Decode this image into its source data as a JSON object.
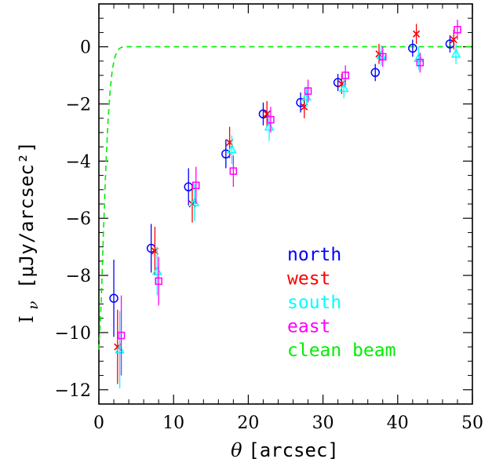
{
  "chart_data": {
    "type": "scatter",
    "title": "",
    "xlabel": {
      "symbol": "θ",
      "units": "[arcsec]"
    },
    "ylabel": {
      "symbol": "I",
      "subscript": "ν",
      "units": "[μJy/arcsec²]"
    },
    "xlim": [
      0,
      50
    ],
    "ylim": [
      -12.5,
      1.5
    ],
    "x_ticks": [
      0,
      10,
      20,
      30,
      40,
      50
    ],
    "y_ticks": [
      0,
      -2,
      -4,
      -6,
      -8,
      -10,
      -12
    ],
    "x_tick_labels": [
      "0",
      "10",
      "20",
      "30",
      "40",
      "50"
    ],
    "y_tick_labels": [
      "0",
      "−2",
      "−4",
      "−6",
      "−8",
      "−10",
      "−12"
    ],
    "grid": false,
    "legend_position": "lower-right inside plot",
    "series": [
      {
        "name": "north",
        "color": "#0000ff",
        "marker": "circle",
        "x": [
          2.0,
          7.0,
          12.0,
          17.0,
          22.0,
          27.0,
          32.0,
          37.0,
          42.0,
          47.0
        ],
        "y": [
          -8.8,
          -7.05,
          -4.9,
          -3.75,
          -2.35,
          -1.95,
          -1.25,
          -0.9,
          -0.05,
          0.1
        ],
        "err": [
          1.35,
          0.85,
          0.65,
          0.5,
          0.4,
          0.35,
          0.3,
          0.3,
          0.3,
          0.3
        ]
      },
      {
        "name": "west",
        "color": "#ff0000",
        "marker": "x",
        "x": [
          2.5,
          7.5,
          12.5,
          17.5,
          22.5,
          27.5,
          32.5,
          37.5,
          42.5,
          47.5
        ],
        "y": [
          -10.5,
          -7.15,
          -5.5,
          -3.35,
          -2.35,
          -2.1,
          -1.3,
          -0.25,
          0.45,
          0.25
        ],
        "err": [
          1.3,
          0.85,
          0.65,
          0.55,
          0.45,
          0.4,
          0.35,
          0.35,
          0.35,
          0.35
        ]
      },
      {
        "name": "south",
        "color": "#00ffff",
        "marker": "triangle",
        "x": [
          2.8,
          7.8,
          12.8,
          17.8,
          22.8,
          27.8,
          32.8,
          37.8,
          42.8,
          47.8
        ],
        "y": [
          -10.6,
          -7.85,
          -5.45,
          -3.6,
          -2.8,
          -1.75,
          -1.45,
          -0.3,
          -0.4,
          -0.25
        ],
        "err": [
          1.35,
          0.85,
          0.65,
          0.5,
          0.5,
          0.35,
          0.35,
          0.35,
          0.4,
          0.35
        ]
      },
      {
        "name": "east",
        "color": "#ff00ff",
        "marker": "square",
        "x": [
          3.0,
          8.0,
          13.0,
          18.0,
          23.0,
          28.0,
          33.0,
          38.0,
          43.0,
          48.0
        ],
        "y": [
          -10.1,
          -8.2,
          -4.85,
          -4.35,
          -2.55,
          -1.55,
          -1.0,
          -0.35,
          -0.55,
          0.6
        ],
        "err": [
          1.4,
          0.85,
          0.65,
          0.55,
          0.45,
          0.4,
          0.35,
          0.35,
          0.35,
          0.35
        ]
      },
      {
        "name": "clean beam",
        "color": "#00ee00",
        "marker": "dashed-line",
        "x": [
          0.0,
          0.3,
          0.6,
          0.9,
          1.2,
          1.5,
          1.8,
          2.1,
          2.4,
          2.7,
          3.0,
          3.5,
          4.0,
          50.0
        ],
        "y": [
          -10.6,
          -9.0,
          -6.6,
          -4.4,
          -2.7,
          -1.55,
          -0.8,
          -0.4,
          -0.18,
          -0.07,
          -0.02,
          0.0,
          0.0,
          0.0
        ]
      }
    ]
  }
}
